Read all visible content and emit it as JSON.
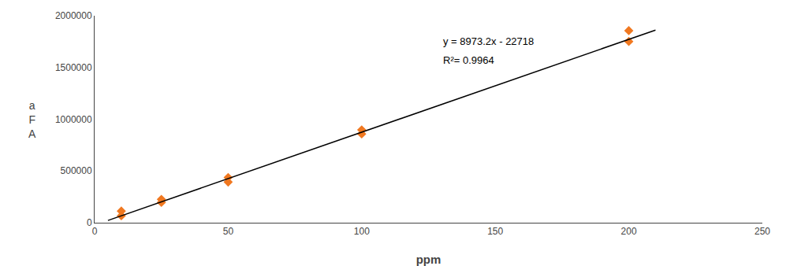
{
  "chart_data": {
    "type": "scatter",
    "xlabel": "ppm",
    "ylabel": "a\nF\nA",
    "xlim": [
      0,
      250
    ],
    "xticks": [
      0,
      50,
      100,
      150,
      200,
      250
    ],
    "ylim": [
      0,
      2000000
    ],
    "yticks": [
      0,
      500000,
      1000000,
      1500000,
      2000000
    ],
    "grid": false,
    "series": [
      {
        "type": "scatter",
        "marker": "diamond",
        "color": "#f07820",
        "x": [
          10,
          10,
          25,
          25,
          50,
          50,
          100,
          100,
          200,
          200
        ],
        "values": [
          67148,
          112428,
          196338,
          225948,
          393218,
          437098,
          858258,
          896778,
          1751488,
          1856258
        ]
      },
      {
        "type": "line",
        "line_style": "solid",
        "color": "#000000",
        "x": [
          5,
          210
        ],
        "values": [
          22148,
          1861654
        ]
      }
    ],
    "annotations": [
      {
        "text": "y = 8973.2x - 22718",
        "x": 130,
        "y": 1680000
      },
      {
        "text": "R²= 0.9964",
        "x": 130,
        "y": 1500000
      }
    ]
  }
}
